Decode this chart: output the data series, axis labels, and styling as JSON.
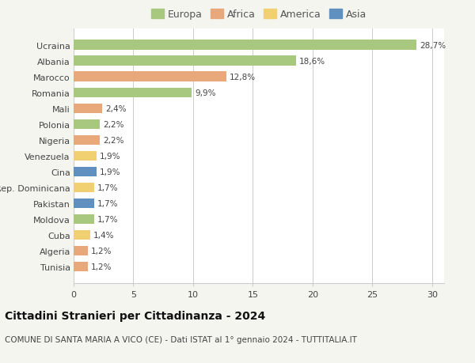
{
  "countries": [
    "Ucraina",
    "Albania",
    "Marocco",
    "Romania",
    "Mali",
    "Polonia",
    "Nigeria",
    "Venezuela",
    "Cina",
    "Rep. Dominicana",
    "Pakistan",
    "Moldova",
    "Cuba",
    "Algeria",
    "Tunisia"
  ],
  "values": [
    28.7,
    18.6,
    12.8,
    9.9,
    2.4,
    2.2,
    2.2,
    1.9,
    1.9,
    1.7,
    1.7,
    1.7,
    1.4,
    1.2,
    1.2
  ],
  "labels": [
    "28,7%",
    "18,6%",
    "12,8%",
    "9,9%",
    "2,4%",
    "2,2%",
    "2,2%",
    "1,9%",
    "1,9%",
    "1,7%",
    "1,7%",
    "1,7%",
    "1,4%",
    "1,2%",
    "1,2%"
  ],
  "continents": [
    "Europa",
    "Europa",
    "Africa",
    "Europa",
    "Africa",
    "Europa",
    "Africa",
    "America",
    "Asia",
    "America",
    "Asia",
    "Europa",
    "America",
    "Africa",
    "Africa"
  ],
  "continent_colors": {
    "Europa": "#a8c880",
    "Africa": "#e8a87c",
    "America": "#f0d070",
    "Asia": "#6090c0"
  },
  "legend_items": [
    "Europa",
    "Africa",
    "America",
    "Asia"
  ],
  "legend_colors": [
    "#a8c880",
    "#e8a87c",
    "#f0d070",
    "#6090c0"
  ],
  "title": "Cittadini Stranieri per Cittadinanza - 2024",
  "subtitle": "COMUNE DI SANTA MARIA A VICO (CE) - Dati ISTAT al 1° gennaio 2024 - TUTTITALIA.IT",
  "xlim": [
    0,
    31
  ],
  "xticks": [
    0,
    5,
    10,
    15,
    20,
    25,
    30
  ],
  "background_color": "#f5f5f0",
  "plot_background": "#ffffff",
  "grid_color": "#cccccc",
  "title_fontsize": 10,
  "subtitle_fontsize": 7.5,
  "label_fontsize": 7.5,
  "tick_fontsize": 8,
  "legend_fontsize": 9
}
